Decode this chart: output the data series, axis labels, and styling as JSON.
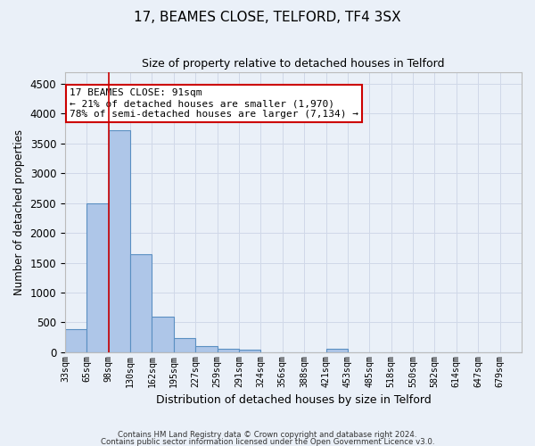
{
  "title": "17, BEAMES CLOSE, TELFORD, TF4 3SX",
  "subtitle": "Size of property relative to detached houses in Telford",
  "xlabel": "Distribution of detached houses by size in Telford",
  "ylabel": "Number of detached properties",
  "footnote1": "Contains HM Land Registry data © Crown copyright and database right 2024.",
  "footnote2": "Contains public sector information licensed under the Open Government Licence v3.0.",
  "bin_labels": [
    "33sqm",
    "65sqm",
    "98sqm",
    "130sqm",
    "162sqm",
    "195sqm",
    "227sqm",
    "259sqm",
    "291sqm",
    "324sqm",
    "356sqm",
    "388sqm",
    "421sqm",
    "453sqm",
    "485sqm",
    "518sqm",
    "550sqm",
    "582sqm",
    "614sqm",
    "647sqm",
    "679sqm"
  ],
  "bar_heights": [
    380,
    2500,
    3720,
    1650,
    600,
    240,
    100,
    60,
    50,
    0,
    0,
    0,
    60,
    0,
    0,
    0,
    0,
    0,
    0,
    0,
    0
  ],
  "bar_color": "#aec6e8",
  "bar_edgecolor": "#5a8fc2",
  "bar_linewidth": 0.8,
  "property_size_bin": 2,
  "red_line_color": "#cc0000",
  "ylim": [
    0,
    4700
  ],
  "yticks": [
    0,
    500,
    1000,
    1500,
    2000,
    2500,
    3000,
    3500,
    4000,
    4500
  ],
  "annotation_text": "17 BEAMES CLOSE: 91sqm\n← 21% of detached houses are smaller (1,970)\n78% of semi-detached houses are larger (7,134) →",
  "annotation_box_color": "#ffffff",
  "annotation_box_edgecolor": "#cc0000",
  "grid_color": "#d0d8e8",
  "background_color": "#eaf0f8",
  "title_fontsize": 11,
  "subtitle_fontsize": 9
}
